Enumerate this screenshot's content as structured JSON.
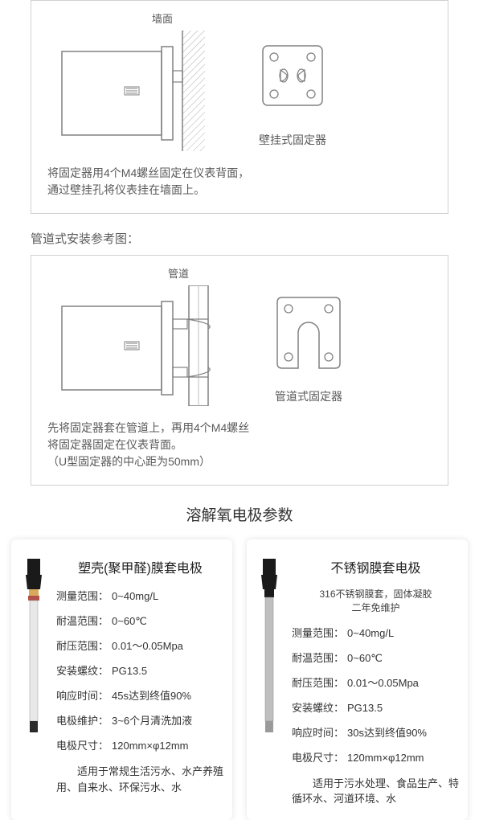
{
  "wall_section": {
    "top_label": "墙面",
    "bracket_label": "壁挂式固定器",
    "desc_line1": "将固定器用4个M4螺丝固定在仪表背面，",
    "desc_line2": "通过壁挂孔将仪表挂在墙面上。"
  },
  "pipe_heading": "管道式安装参考图：",
  "pipe_section": {
    "top_label": "管道",
    "bracket_label": "管道式固定器",
    "desc_line1": "先将固定器套在管道上，再用4个M4螺丝",
    "desc_line2": "将固定器固定在仪表背面。",
    "desc_line3": "（U型固定器的中心距为50mm）"
  },
  "params_title": "溶解氧电极参数",
  "card1": {
    "title": "塑壳(聚甲醛)膜套电极",
    "specs": [
      {
        "label": "测量范围：",
        "val": "0~40mg/L"
      },
      {
        "label": "耐温范围：",
        "val": "0~60℃"
      },
      {
        "label": "耐压范围：",
        "val": "0.01～0.05Mpa"
      },
      {
        "label": "安装螺纹：",
        "val": "PG13.5"
      },
      {
        "label": "响应时间：",
        "val": "45s达到终值90%"
      },
      {
        "label": "电极维护：",
        "val": "3~6个月清洗加液"
      },
      {
        "label": "电极尺寸：",
        "val": "120mm×φ12mm"
      }
    ],
    "foot": "适用于常规生活污水、水产养殖用、自来水、环保污水、水"
  },
  "card2": {
    "title": "不锈钢膜套电极",
    "sub": "316不锈钢膜套，固体凝胶\n二年免维护",
    "specs": [
      {
        "label": "测量范围：",
        "val": "0~40mg/L"
      },
      {
        "label": "耐温范围：",
        "val": "0~60℃"
      },
      {
        "label": "耐压范围：",
        "val": "0.01～0.05Mpa"
      },
      {
        "label": "安装螺纹：",
        "val": "PG13.5"
      },
      {
        "label": "响应时间：",
        "val": "30s达到终值90%"
      },
      {
        "label": "电极尺寸：",
        "val": "120mm×φ12mm"
      }
    ],
    "foot": "适用于污水处理、食品生产、特循环水、河道环境、水"
  },
  "colors": {
    "stroke": "#808080",
    "fill": "#f8f8f8",
    "hatch": "#b0b0b0"
  }
}
